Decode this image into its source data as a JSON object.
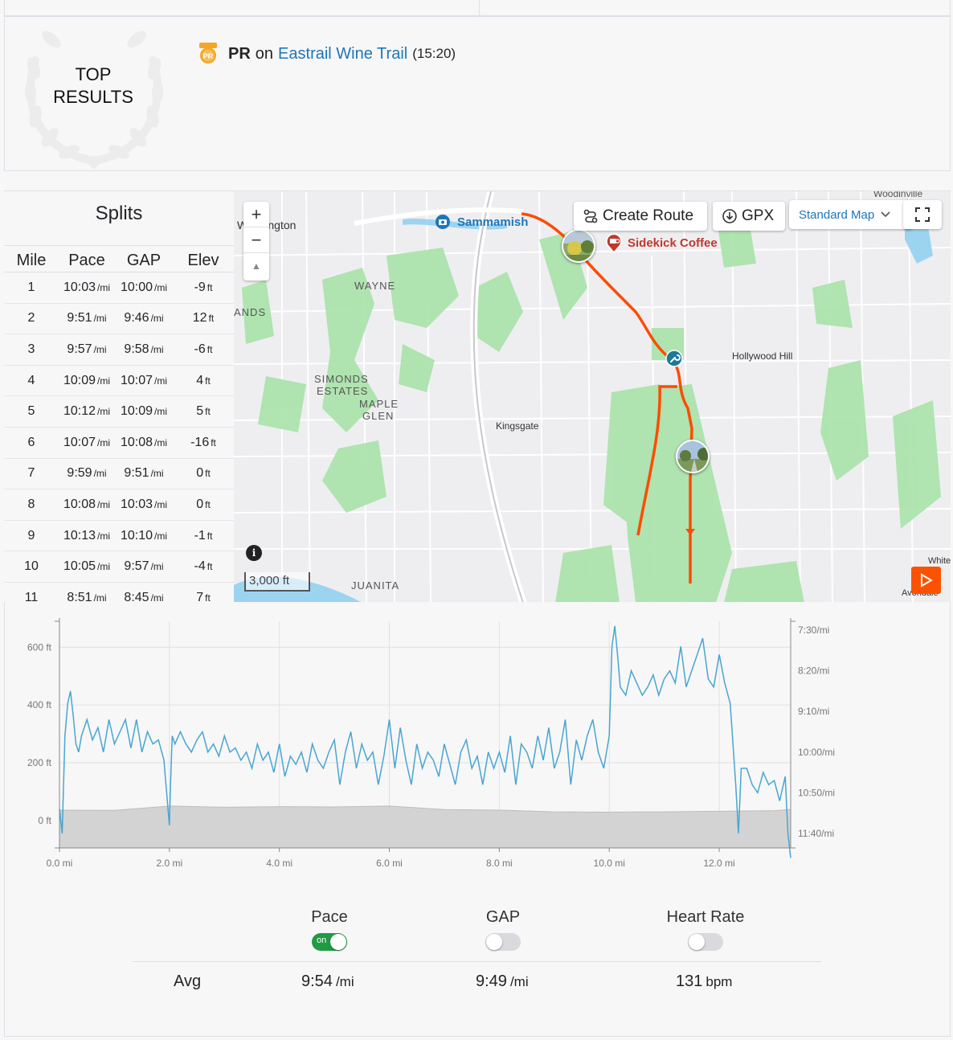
{
  "top_results": {
    "title_line1": "TOP",
    "title_line2": "RESULTS",
    "pr_label": "PR",
    "pr_on": "on",
    "segment_name": "Eastrail Wine Trail",
    "segment_time": "(15:20)"
  },
  "splits": {
    "title": "Splits",
    "headers": [
      "Mile",
      "Pace",
      "GAP",
      "Elev"
    ],
    "rows": [
      {
        "mile": "1",
        "pace": "10:03",
        "gap": "10:00",
        "elev": "-9"
      },
      {
        "mile": "2",
        "pace": "9:51",
        "gap": "9:46",
        "elev": "12"
      },
      {
        "mile": "3",
        "pace": "9:57",
        "gap": "9:58",
        "elev": "-6"
      },
      {
        "mile": "4",
        "pace": "10:09",
        "gap": "10:07",
        "elev": "4"
      },
      {
        "mile": "5",
        "pace": "10:12",
        "gap": "10:09",
        "elev": "5"
      },
      {
        "mile": "6",
        "pace": "10:07",
        "gap": "10:08",
        "elev": "-16"
      },
      {
        "mile": "7",
        "pace": "9:59",
        "gap": "9:51",
        "elev": "0"
      },
      {
        "mile": "8",
        "pace": "10:08",
        "gap": "10:03",
        "elev": "0"
      },
      {
        "mile": "9",
        "pace": "10:13",
        "gap": "10:10",
        "elev": "-1"
      },
      {
        "mile": "10",
        "pace": "10:05",
        "gap": "9:57",
        "elev": "-4"
      },
      {
        "mile": "11",
        "pace": "8:51",
        "gap": "8:45",
        "elev": "7"
      }
    ],
    "pace_unit": "/mi",
    "elev_unit": "ft"
  },
  "map": {
    "zoom_in": "+",
    "zoom_out": "−",
    "compass": "▲",
    "create_route": "Create Route",
    "gpx": "GPX",
    "map_type": "Standard Map",
    "scale": "3,000 ft",
    "info": "i",
    "labels": {
      "woodinville": "Woodinville",
      "washington": "Washington",
      "sammamish": "Sammamish",
      "sidekick": "Sidekick Coffee",
      "wayne": "WAYNE",
      "ands": "ANDS",
      "simonds": "SIMONDS",
      "estates": "ESTATES",
      "maple": "MAPLE",
      "glen": "GLEN",
      "kingsgate": "Kingsgate",
      "hollywood": "Hollywood Hill",
      "juanita": "JUANITA",
      "white": "White",
      "avondale": "Avondale"
    },
    "colors": {
      "route": "#fc4c02",
      "park": "#a9e2a8",
      "water": "#9cd4ef"
    }
  },
  "chart_data": {
    "type": "line",
    "x_axis": {
      "label": "",
      "ticks": [
        "0.0 mi",
        "2.0 mi",
        "4.0 mi",
        "6.0 mi",
        "8.0 mi",
        "10.0 mi",
        "12.0 mi"
      ],
      "range": [
        0,
        13.3
      ]
    },
    "y_left": {
      "ticks": [
        "0 ft",
        "200 ft",
        "400 ft",
        "600 ft"
      ],
      "range": [
        -95,
        690
      ]
    },
    "y_right": {
      "ticks": [
        "7:30/mi",
        "8:20/mi",
        "9:10/mi",
        "10:00/mi",
        "10:50/mi",
        "11:40/mi"
      ]
    },
    "series": [
      {
        "name": "Pace",
        "color": "#48a5d2",
        "unit": "sec/mi",
        "x": [
          0.0,
          0.05,
          0.1,
          0.15,
          0.2,
          0.25,
          0.3,
          0.35,
          0.4,
          0.5,
          0.6,
          0.7,
          0.8,
          0.9,
          1.0,
          1.1,
          1.2,
          1.3,
          1.4,
          1.5,
          1.6,
          1.7,
          1.8,
          1.9,
          2.0,
          2.02,
          2.05,
          2.1,
          2.2,
          2.3,
          2.4,
          2.5,
          2.6,
          2.7,
          2.8,
          2.9,
          3.0,
          3.1,
          3.2,
          3.3,
          3.4,
          3.5,
          3.6,
          3.7,
          3.8,
          3.9,
          4.0,
          4.1,
          4.2,
          4.3,
          4.4,
          4.5,
          4.6,
          4.7,
          4.8,
          4.9,
          5.0,
          5.1,
          5.2,
          5.3,
          5.4,
          5.5,
          5.6,
          5.7,
          5.8,
          5.9,
          6.0,
          6.1,
          6.2,
          6.3,
          6.4,
          6.5,
          6.6,
          6.7,
          6.8,
          6.9,
          7.0,
          7.1,
          7.2,
          7.3,
          7.4,
          7.5,
          7.6,
          7.7,
          7.8,
          7.9,
          8.0,
          8.1,
          8.2,
          8.3,
          8.4,
          8.5,
          8.6,
          8.7,
          8.8,
          8.9,
          9.0,
          9.1,
          9.2,
          9.3,
          9.4,
          9.5,
          9.6,
          9.7,
          9.8,
          9.9,
          10.0,
          10.05,
          10.1,
          10.15,
          10.2,
          10.3,
          10.4,
          10.5,
          10.6,
          10.7,
          10.8,
          10.9,
          11.0,
          11.1,
          11.2,
          11.3,
          11.4,
          11.5,
          11.6,
          11.7,
          11.8,
          11.9,
          12.0,
          12.1,
          12.2,
          12.25,
          12.3,
          12.35,
          12.4,
          12.5,
          12.6,
          12.7,
          12.8,
          12.9,
          13.0,
          13.1,
          13.2,
          13.25,
          13.3
        ],
        "values": [
          670,
          700,
          580,
          540,
          525,
          555,
          590,
          600,
          580,
          560,
          585,
          570,
          600,
          560,
          590,
          575,
          560,
          595,
          560,
          600,
          575,
          590,
          585,
          610,
          690,
          640,
          580,
          590,
          575,
          590,
          600,
          585,
          575,
          600,
          590,
          605,
          580,
          600,
          595,
          610,
          600,
          620,
          590,
          610,
          600,
          625,
          590,
          630,
          605,
          615,
          600,
          625,
          590,
          610,
          620,
          600,
          585,
          640,
          600,
          575,
          620,
          590,
          610,
          600,
          640,
          605,
          560,
          620,
          570,
          610,
          640,
          590,
          620,
          600,
          610,
          630,
          590,
          615,
          640,
          600,
          585,
          620,
          605,
          640,
          600,
          620,
          600,
          625,
          580,
          640,
          590,
          600,
          620,
          580,
          610,
          570,
          620,
          600,
          560,
          640,
          585,
          610,
          580,
          560,
          600,
          620,
          580,
          470,
          445,
          480,
          520,
          530,
          500,
          515,
          530,
          520,
          505,
          530,
          510,
          500,
          515,
          470,
          520,
          500,
          480,
          460,
          510,
          520,
          480,
          515,
          540,
          590,
          640,
          700,
          620,
          620,
          640,
          650,
          625,
          640,
          635,
          660,
          630,
          700,
          730
        ]
      },
      {
        "name": "Elevation",
        "color": "#d3d3d3",
        "unit": "ft",
        "x": [
          0,
          1,
          2,
          3,
          4,
          5,
          6,
          7,
          8,
          9,
          10,
          11,
          12,
          13,
          13.3
        ],
        "values": [
          36,
          35,
          50,
          46,
          48,
          47,
          50,
          38,
          36,
          30,
          29,
          30,
          32,
          34,
          38
        ]
      }
    ]
  },
  "stats": {
    "pace_label": "Pace",
    "gap_label": "GAP",
    "hr_label": "Heart Rate",
    "toggle_on_text": "on",
    "avg_label": "Avg",
    "avg_pace": "9:54",
    "avg_pace_unit": "/mi",
    "avg_gap": "9:49",
    "avg_gap_unit": "/mi",
    "avg_hr": "131",
    "avg_hr_unit": "bpm"
  }
}
